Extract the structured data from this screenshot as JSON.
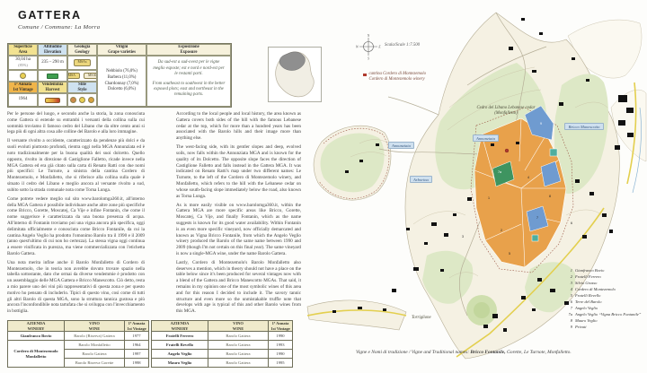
{
  "page": {
    "title": "GATTERA",
    "subtitle": "Comune / Commune: La Morra"
  },
  "info_table": {
    "col_headers": [
      {
        "it": "Superficie",
        "en": "Area"
      },
      {
        "it": "Altitudine",
        "en": "Elevation"
      },
      {
        "it": "Geologia",
        "en": "Geology"
      },
      {
        "it": "Vitigni",
        "en": "Grape varieties"
      },
      {
        "it": "Esposizione",
        "en": "Exposure"
      }
    ],
    "area": {
      "value": "30,04 ha",
      "pct": "(85%)"
    },
    "elevation": "235 – 290 m",
    "geology_badges": {
      "wide": "MSAs",
      "pair": [
        "MSA",
        "MSAl"
      ]
    },
    "annata_header": {
      "it": "1ª Annata",
      "en": "1st Vintage"
    },
    "annata_value": "1964",
    "harvest_header": {
      "it": "Vendemmia",
      "en": "Harvest"
    },
    "style_header": {
      "it": "Stile",
      "en": "Style"
    },
    "grapes": [
      "Nebbiolo (76,0%)",
      "Barbera (11,0%)",
      "Chardonnay (7,0%)",
      "Dolcetto (6,0%)"
    ],
    "exposure": {
      "it": "Da sud-est a sud-ovest per le vigne meglio esposte; est e nord e nord-est per le restanti parti.",
      "en": "From southeast to southwest in the better exposed plots; east and northeast in the remaining parts."
    }
  },
  "article": {
    "it": [
      "Per le persone del luogo, e secondo anche la storia, la zona conosciuta come Gattera si estende su entrambi i versanti della collina sulla cui sommità troviamo il famoso cedro del Libano che da oltre cento anni si lega più di ogni altra cosa alle colline del Barolo e alla loro immagine.",
      "Il versante rivolto a occidente, caratterizzato da pendenze più dolci e da suoli evoluti piuttosto profondi, rientra oggi nella MGA Annunziata ed è noto tradizionalmente per la buona qualità dei suoi dolcetto. Quello opposto, rivolto in direzione di Castiglione Falletto, ricade invece nella MGA Gattera ed era già citato sulla carta di Renato Ratti con due nomi più specifici: Le Turnote, a sinistra della cantina Cordero di Montezemolo, e Monfalletto, che si riferisce alla collina sulla quale è situato il cedro del Libano e meglio ancora al versante rivolto a sud, subito sotto la strada comunale nota come Torna Lunga.",
      "Come potrete vedere meglio sul sito www.barolomga360.it, all'interno della MGA Gattera è possibile individuare anche altre zone più specifiche come Bricco, Gorette, Moscatej, Ca Vije e infine Fontanin, che come il nome suggerisce è caratterizzata da una buona presenza di acqua. All'interno di Fontanin troviamo poi una vigna ancora più specifica, oggi delimitata ufficialmente e conosciuta come Bricco Fontanile, da cui la cantina Angelo Veglio ha prodotto l'omonimo Barolo tra il 1990 e il 2009 (anno quest'ultimo di cui non ho certezza). La stessa vigna oggi continua a essere vinificata in purezza, ma viene commercializzata con l'etichetta Barolo Gattera.",
      "Una nota merita infine anche il Barolo Monfalletto di Cordero di Montezemolo, che in teoria non avrebbe dovuto trovare spazio nella tabella sottostante, dato che ormai da diverse vendemmie è prodotto con un assemblaggio delle MGA Gattera e Bricco Manescotto. Ciò detto, resta a mio parere uno dei vini più rappresentativi di questa zona e per questo motivo ho pensato di includerlo. Tipici di questo vino, così come di tutti gli altri Barolo di questa MGA, sono la struttura tannica gustosa e più ancora l'inconfondibile nota tartufata che si sviluppa con l'invecchiamento in bottiglia."
    ],
    "en": [
      "According to the local people and local history, the area known as Gattera covers both sides of the hill with the famous Lebanese cedar at the top, which for more than a hundred years has been associated with the Barolo hills and their image more than anything else.",
      "The west-facing side, with its gentler slopes and deep, evolved soils, now falls within the Annunziata MGA and is known for the quality of its Dolcetto. The opposite slope faces the direction of Castiglione Falletto and falls instead in the Gattera MGA. It was indicated on Renato Ratti's map under two different names: Le Turnote, to the left of the Cordero di Montezemolo winery, and Monfalletto, which refers to the hill with the Lebanese cedar on whose south-facing slope immediately below the road, also known as Torna Lunga.",
      "As is more easily visible on www.barolomga360.it, within the Gattera MGA are more specific areas like Bricco, Gorette, Moscatej, Ca Vije, and finally Fontanin, which as the name suggests is known for its good water availability. Within Fontanin is an even more specific vineyard, now officially demarcated and known as Vigna Bricco Fontanile, from which the Angelo Veglio winery produced the Barolo of the same name between 1990 and 2009 (though I'm not certain on this final year). The same vineyard is now a single-MGA wine, under the name Barolo Gattera.",
      "Lastly, Cordero di Montezemolo's Barolo Monfalletto also deserves a mention, which in theory should not have a place on the table below since it's been produced for several vintages now with a blend of the Gattera and Bricco Manescotto MGAs. That said, it remains in my opinion one of the most symbolic wines of this area and for this reason I decided to include it. The savory tannic structure and even more so the unmistakable truffle note that develops with age is typical of this and other Barolo wines from this MGA."
    ]
  },
  "map": {
    "scale": "Scala/Scale 1:7.500",
    "compass": {
      "n": "N",
      "e": "E",
      "s": "S",
      "w": "W"
    },
    "winery_marker_legend": {
      "it": "cantina Cordero di Montezemolo",
      "en": "Cordero di Montezemolo winery"
    },
    "labels": {
      "annunziata": "Annunziata",
      "annunziata2": "Annunziata",
      "arborina": "Arborina",
      "bricco_manescotto": "Bricco Manescotto",
      "torriglione": "Torriglione",
      "cedro": "Cedro del Libano Lebanese cedar (Monfalletto)"
    },
    "wineries": [
      {
        "num": "1",
        "name": "Gianfranco Bovio"
      },
      {
        "num": "2",
        "name": "Fratelli Ferrero"
      },
      {
        "num": "3",
        "name": "Silvio Grasso"
      },
      {
        "num": "4",
        "name": "Cordero di Montezemolo"
      },
      {
        "num": "5",
        "name": "Fratelli Revello"
      },
      {
        "num": "6",
        "name": "Terre del Barolo"
      },
      {
        "num": "7",
        "name": "Angelo Veglio"
      },
      {
        "num": "7a",
        "name": "Angelo Veglio “Vigna Bricco Fontanile”"
      },
      {
        "num": "8",
        "name": "Mauro Veglio"
      },
      {
        "num": "9",
        "name": "Privati"
      }
    ],
    "markers": [
      "1",
      "2",
      "3",
      "4",
      "5",
      "6",
      "7",
      "7a",
      "8",
      "9"
    ],
    "caption": {
      "prefix": "Vigne e Nomi di tradizione / Vigne and Traditional names:",
      "bold": "Bricco Fontanile,",
      "rest": "Gorette, Le Turnote, Monfalletto."
    }
  },
  "wine_tables": {
    "headers": {
      "azienda_it": "AZIENDA",
      "azienda_en": "WINERY",
      "vino_it": "VINO",
      "vino_en": "WINE",
      "annata_it": "1ª Annata",
      "annata_en": "1st Vintage"
    },
    "left": {
      "row0": {
        "winery": "Gianfranco Bovio",
        "wine": "Barolo (Riserva) Gattera",
        "vintage": "1977"
      },
      "group_winery": "Cordero di Montezemolo Monfalletto",
      "group_rows": [
        {
          "wine": "Barolo Monfalletto",
          "vintage": "1964"
        },
        {
          "wine": "Barolo Gattera",
          "vintage": "1997"
        },
        {
          "wine": "Barolo Riserva Gorette",
          "vintage": "1998"
        }
      ]
    },
    "right": {
      "rows": [
        {
          "winery": "Fratelli Ferrero",
          "wine": "Barolo Gattera",
          "vintage": "1990"
        },
        {
          "winery": "Fratelli Revello",
          "wine": "Barolo Gattera",
          "vintage": "1993"
        },
        {
          "winery": "Angelo Veglio",
          "wine": "Barolo Gattera",
          "vintage": "1990"
        },
        {
          "winery": "Mauro Veglio",
          "wine": "Barolo Gattera",
          "vintage": "1995"
        }
      ]
    }
  },
  "colors": {
    "mga_orange": "#e8a14b",
    "mga_blue": "#6f9bd0",
    "mga_green": "#3e9460",
    "mga_teal": "#4fae9e",
    "winery_red": "#b03a2e",
    "road_yellow": "#e3cf4e",
    "header_yellow": "#f2e291",
    "header_blue": "#cfe2f0",
    "header_orange": "#f0b54a"
  }
}
